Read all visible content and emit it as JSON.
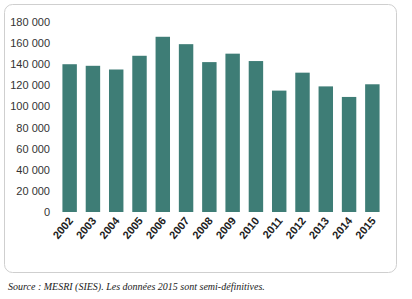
{
  "chart_data": {
    "type": "bar",
    "categories": [
      "2002",
      "2003",
      "2004",
      "2005",
      "2006",
      "2007",
      "2008",
      "2009",
      "2010",
      "2011",
      "2012",
      "2013",
      "2014",
      "2015"
    ],
    "values": [
      140000,
      138500,
      135000,
      148000,
      166000,
      159000,
      142000,
      150000,
      143000,
      115000,
      132000,
      119000,
      109000,
      121000
    ],
    "color": "#3e7d76",
    "ylim": [
      0,
      180000
    ],
    "yticks": [
      0,
      {
        "value": 20000,
        "label": "20 000"
      },
      {
        "value": 40000,
        "label": "40 000"
      },
      {
        "value": 60000,
        "label": "60 000"
      },
      {
        "value": 80000,
        "label": "80 000"
      },
      {
        "value": 100000,
        "label": "100 000"
      },
      {
        "value": 120000,
        "label": "120 000"
      },
      {
        "value": 140000,
        "label": "140 000"
      },
      {
        "value": 160000,
        "label": "160 000"
      },
      {
        "value": 180000,
        "label": "180 000"
      }
    ],
    "grid": false,
    "annotations": [
      "Source : MESRI (SIES). Les données 2015 sont semi-définitives."
    ]
  }
}
